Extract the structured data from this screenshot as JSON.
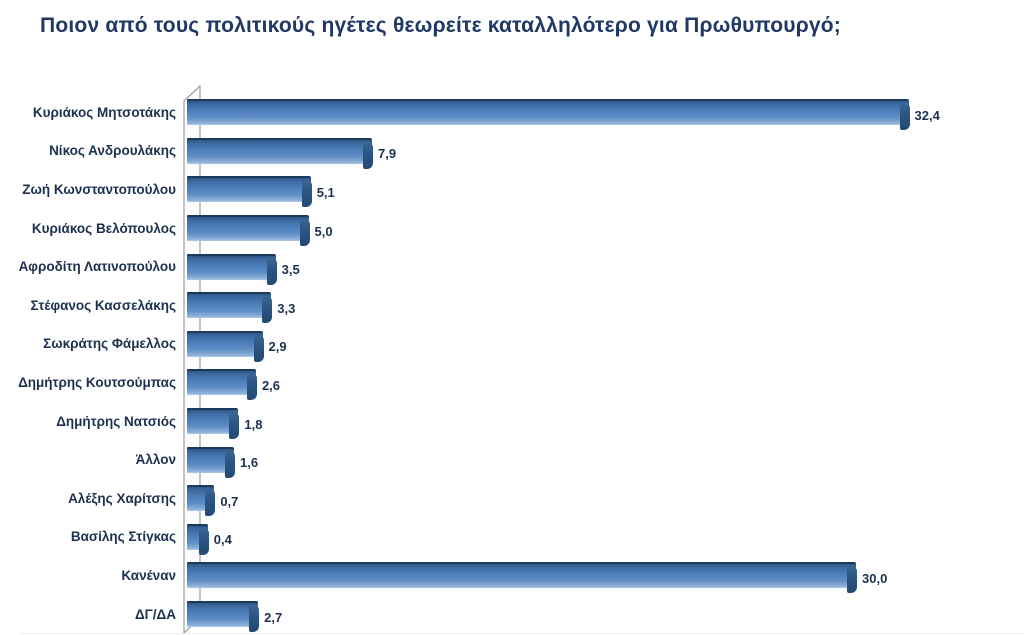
{
  "chart_data": {
    "type": "bar",
    "orientation": "horizontal",
    "title": "Ποιον από τους πολιτικούς ηγέτες θεωρείτε καταλληλότερο για Πρωθυπουργό;",
    "categories": [
      "Κυριάκος Μητσοτάκης",
      "Νίκος Ανδρουλάκης",
      "Ζωή Κωνσταντοπούλου",
      "Κυριάκος Βελόπουλος",
      "Αφροδίτη Λατινοπούλου",
      "Στέφανος Κασσελάκης",
      "Σωκράτης Φάμελλος",
      "Δημήτρης Κουτσούμπας",
      "Δημήτρης Νατσιός",
      "Άλλον",
      "Αλέξης Χαρίτσης",
      "Βασίλης Στίγκας",
      "Κανέναν",
      "ΔΓ/ΔΑ"
    ],
    "values": [
      32.4,
      7.9,
      5.1,
      5.0,
      3.5,
      3.3,
      2.9,
      2.6,
      1.8,
      1.6,
      0.7,
      0.4,
      30.0,
      2.7
    ],
    "value_labels": [
      "32,4",
      "7,9",
      "5,1",
      "5,0",
      "3,5",
      "3,3",
      "2,9",
      "2,6",
      "1,8",
      "1,6",
      "0,7",
      "0,4",
      "30,0",
      "2,7"
    ],
    "xlim": [
      0,
      33
    ],
    "decimal_separator": ",",
    "grid": false,
    "legend": "none",
    "bar_color": "#4f81bd",
    "bar_edge_color": "#1c3a5e",
    "bar_cap_color": "#2c5584",
    "title_color": "#1f3864",
    "label_color": "#1e3050",
    "axis_wall_color": "#9e9e9e"
  }
}
